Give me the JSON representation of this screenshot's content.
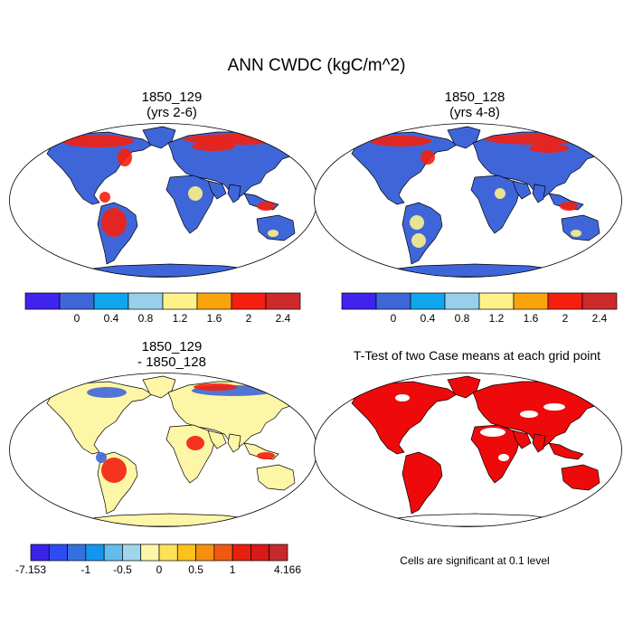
{
  "figure": {
    "title": "ANN CWDC (kgC/m^2)"
  },
  "panels": [
    {
      "id": "p1",
      "title_line1": "1850_129",
      "title_line2": "(yrs 2-6)"
    },
    {
      "id": "p2",
      "title_line1": "1850_128",
      "title_line2": "(yrs 4-8)"
    },
    {
      "id": "p3",
      "title_line1": "1850_129",
      "title_line2": "- 1850_128"
    },
    {
      "id": "p4",
      "title_line1": "T-Test of two Case means at each grid point",
      "title_line2": ""
    }
  ],
  "colorbars": {
    "absolute": {
      "colors": [
        "#4123f0",
        "#3f66d9",
        "#0fa6ee",
        "#97d0ea",
        "#fdf28a",
        "#f9a40d",
        "#f41f0f",
        "#cf2a2b"
      ],
      "labels": [
        "0",
        "0.4",
        "0.8",
        "1.2",
        "1.6",
        "2",
        "2.4"
      ]
    },
    "difference": {
      "colors": [
        "#3a23e8",
        "#2d4df2",
        "#3571de",
        "#1496f0",
        "#62bdea",
        "#9fd6ec",
        "#fdf6a6",
        "#fde159",
        "#fcc21a",
        "#f78f10",
        "#f25811",
        "#e8200f",
        "#d81a18",
        "#c52a2e"
      ],
      "labels": [
        "-7.153",
        "-1",
        "-0.5",
        "0",
        "0.5",
        "1",
        "4.166"
      ]
    }
  },
  "footnote": "Cells are significant at 0.1 level",
  "map_colors": {
    "ocean": "#ffffff",
    "land_low": "#3f66d9",
    "high": "#f41f0f",
    "mid": "#fdf28a",
    "diff_base": "#fdf6a6",
    "significant": "#ee0a0a",
    "coast": "#000000"
  }
}
